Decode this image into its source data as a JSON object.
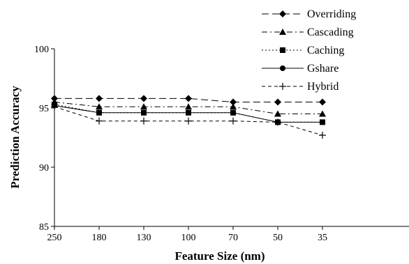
{
  "chart_data": {
    "type": "line",
    "title": "",
    "xlabel": "Feature Size (nm)",
    "ylabel": "Prediction Accuracy",
    "categories": [
      "250",
      "180",
      "130",
      "100",
      "70",
      "50",
      "35"
    ],
    "ylim": [
      85,
      100
    ],
    "yticks": [
      85,
      90,
      95,
      100
    ],
    "grid": false,
    "legend_position": "top-right",
    "series": [
      {
        "name": "Overriding",
        "marker": "diamond",
        "dash": "long-dash",
        "values": [
          95.8,
          95.8,
          95.8,
          95.8,
          95.5,
          95.5,
          95.5
        ]
      },
      {
        "name": "Cascading",
        "marker": "triangle",
        "dash": "dash-dot",
        "values": [
          95.5,
          95.1,
          95.1,
          95.1,
          95.1,
          94.5,
          94.5
        ]
      },
      {
        "name": "Caching",
        "marker": "square",
        "dash": "dotted",
        "values": [
          95.3,
          94.6,
          94.6,
          94.6,
          94.6,
          93.8,
          93.8
        ]
      },
      {
        "name": "Gshare",
        "marker": "circle",
        "dash": "solid",
        "values": [
          95.2,
          94.6,
          94.6,
          94.6,
          94.6,
          93.8,
          93.8
        ]
      },
      {
        "name": "Hybrid",
        "marker": "plus",
        "dash": "short-dash",
        "values": [
          95.1,
          93.9,
          93.9,
          93.9,
          93.9,
          93.8,
          92.7
        ]
      }
    ]
  }
}
